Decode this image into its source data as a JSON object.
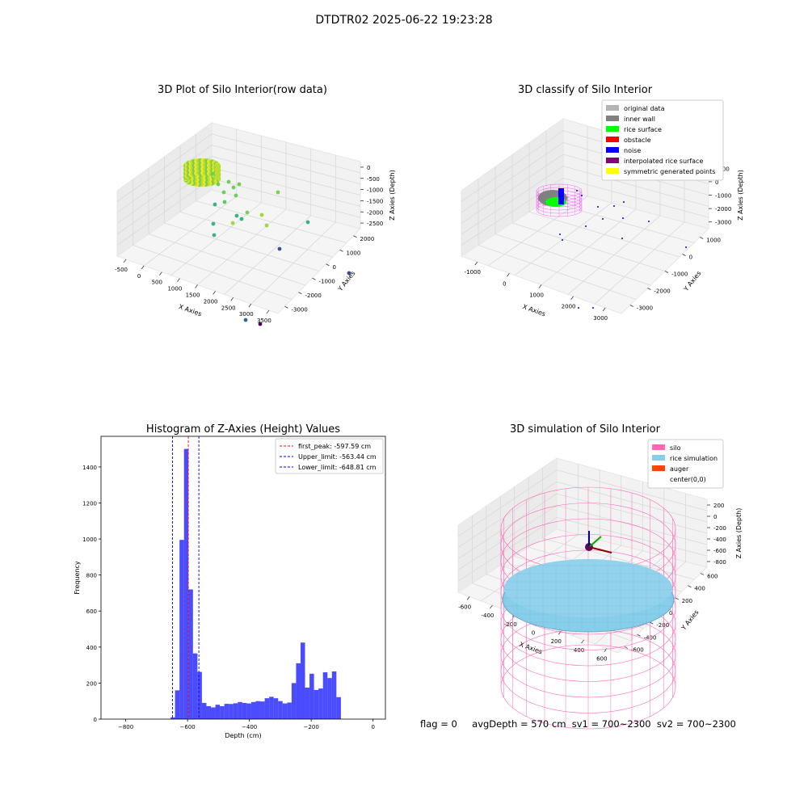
{
  "suptitle": "DTDTR02 2025-06-22 19:23:28",
  "footer": {
    "flag": "flag = 0",
    "stats": "avgDepth = 570 cm  sv1 = 700~2300  sv2 = 700~2300"
  },
  "chart_data": [
    {
      "type": "scatter3d",
      "title": "3D Plot of Silo Interior(row data)",
      "xlabel": "X Axies",
      "ylabel": "Y Axies",
      "zlabel": "Z Axies (Depth)",
      "xticks": [
        "-500",
        "0",
        "500",
        "1000",
        "1500",
        "2000",
        "2500",
        "3000",
        "3500"
      ],
      "yticks": [
        "-3000",
        "-2000",
        "-1000",
        "0",
        "1000",
        "2000"
      ],
      "zticks": [
        "-2500",
        "-2000",
        "-1500",
        "-1000",
        "-500",
        "0"
      ],
      "colormap": "viridis"
    },
    {
      "type": "scatter3d",
      "title": "3D classify of Silo Interior",
      "xlabel": "X Axies",
      "ylabel": "Y Axies",
      "zlabel": "Z Axies (Depth)",
      "xticks": [
        "-1000",
        "0",
        "1000",
        "2000",
        "3000"
      ],
      "yticks": [
        "-3000",
        "-2000",
        "-1000",
        "0",
        "1000"
      ],
      "zticks": [
        "-3000",
        "-2000",
        "-1000",
        "0",
        "1000"
      ],
      "legend": [
        {
          "label": "original data",
          "color": "#b3b3b3"
        },
        {
          "label": "inner wall",
          "color": "#808080"
        },
        {
          "label": "rice surface",
          "color": "#00ff00"
        },
        {
          "label": "obstacle",
          "color": "#ff0000"
        },
        {
          "label": "noise",
          "color": "#0000ff"
        },
        {
          "label": "interpolated rice surface",
          "color": "#800080"
        },
        {
          "label": "symmetric generated points",
          "color": "#ffff00"
        }
      ]
    },
    {
      "type": "bar",
      "title": "Histogram of Z-Axies (Height) Values",
      "xlabel": "Depth (cm)",
      "ylabel": "Frequency",
      "xlim": [
        -880,
        40
      ],
      "ylim": [
        0,
        1570
      ],
      "xticks": [
        -800,
        -600,
        -400,
        -200,
        0
      ],
      "yticks": [
        0,
        200,
        400,
        600,
        800,
        1000,
        1200,
        1400
      ],
      "bin_width": 14.5,
      "bar_color": "#0000ff",
      "bins": [
        {
          "x": -655,
          "count": 10
        },
        {
          "x": -640.5,
          "count": 160
        },
        {
          "x": -626,
          "count": 995
        },
        {
          "x": -611.5,
          "count": 1500
        },
        {
          "x": -597,
          "count": 720
        },
        {
          "x": -582.5,
          "count": 365
        },
        {
          "x": -568,
          "count": 262
        },
        {
          "x": -553.5,
          "count": 90
        },
        {
          "x": -539,
          "count": 72
        },
        {
          "x": -524.5,
          "count": 65
        },
        {
          "x": -510,
          "count": 80
        },
        {
          "x": -495.5,
          "count": 72
        },
        {
          "x": -481,
          "count": 85
        },
        {
          "x": -466.5,
          "count": 84
        },
        {
          "x": -452,
          "count": 88
        },
        {
          "x": -437.5,
          "count": 95
        },
        {
          "x": -423,
          "count": 90
        },
        {
          "x": -408.5,
          "count": 87
        },
        {
          "x": -394,
          "count": 95
        },
        {
          "x": -379.5,
          "count": 100
        },
        {
          "x": -365,
          "count": 98
        },
        {
          "x": -350.5,
          "count": 116
        },
        {
          "x": -336,
          "count": 124
        },
        {
          "x": -321.5,
          "count": 116
        },
        {
          "x": -307,
          "count": 100
        },
        {
          "x": -292.5,
          "count": 87
        },
        {
          "x": -278,
          "count": 92
        },
        {
          "x": -263.5,
          "count": 200
        },
        {
          "x": -249,
          "count": 310
        },
        {
          "x": -234.5,
          "count": 425
        },
        {
          "x": -220,
          "count": 175
        },
        {
          "x": -205.5,
          "count": 252
        },
        {
          "x": -191,
          "count": 162
        },
        {
          "x": -176.5,
          "count": 170
        },
        {
          "x": -162,
          "count": 260
        },
        {
          "x": -147.5,
          "count": 228
        },
        {
          "x": -133,
          "count": 265
        },
        {
          "x": -118.5,
          "count": 122
        }
      ],
      "vlines": [
        {
          "label": "first_peak: -597.59 cm",
          "x": -597.59,
          "color": "#ff0000"
        },
        {
          "label": "Upper_limit: -563.44 cm",
          "x": -563.44,
          "color": "#0000ff"
        },
        {
          "label": "Lower_limit: -648.81 cm",
          "x": -648.81,
          "color": "#0000ff"
        }
      ]
    },
    {
      "type": "surface3d",
      "title": "3D simulation of Silo Interior",
      "xlabel": "X Axies",
      "ylabel": "Y Axies",
      "zlabel": "Z Axies (Depth)",
      "xticks": [
        "-600",
        "-400",
        "-200",
        "0",
        "200",
        "400",
        "600"
      ],
      "yticks": [
        "-600",
        "-400",
        "-200",
        "0",
        "200",
        "400",
        "600"
      ],
      "zticks": [
        "-800",
        "-600",
        "-400",
        "-200",
        "0",
        "200"
      ],
      "legend": [
        {
          "label": "silo",
          "color": "#ff69b4"
        },
        {
          "label": "rice simulation",
          "color": "#87ceeb"
        },
        {
          "label": "auger",
          "color": "#ff4500"
        },
        {
          "label": "center(0,0)",
          "color": "#ffffff"
        }
      ]
    }
  ]
}
